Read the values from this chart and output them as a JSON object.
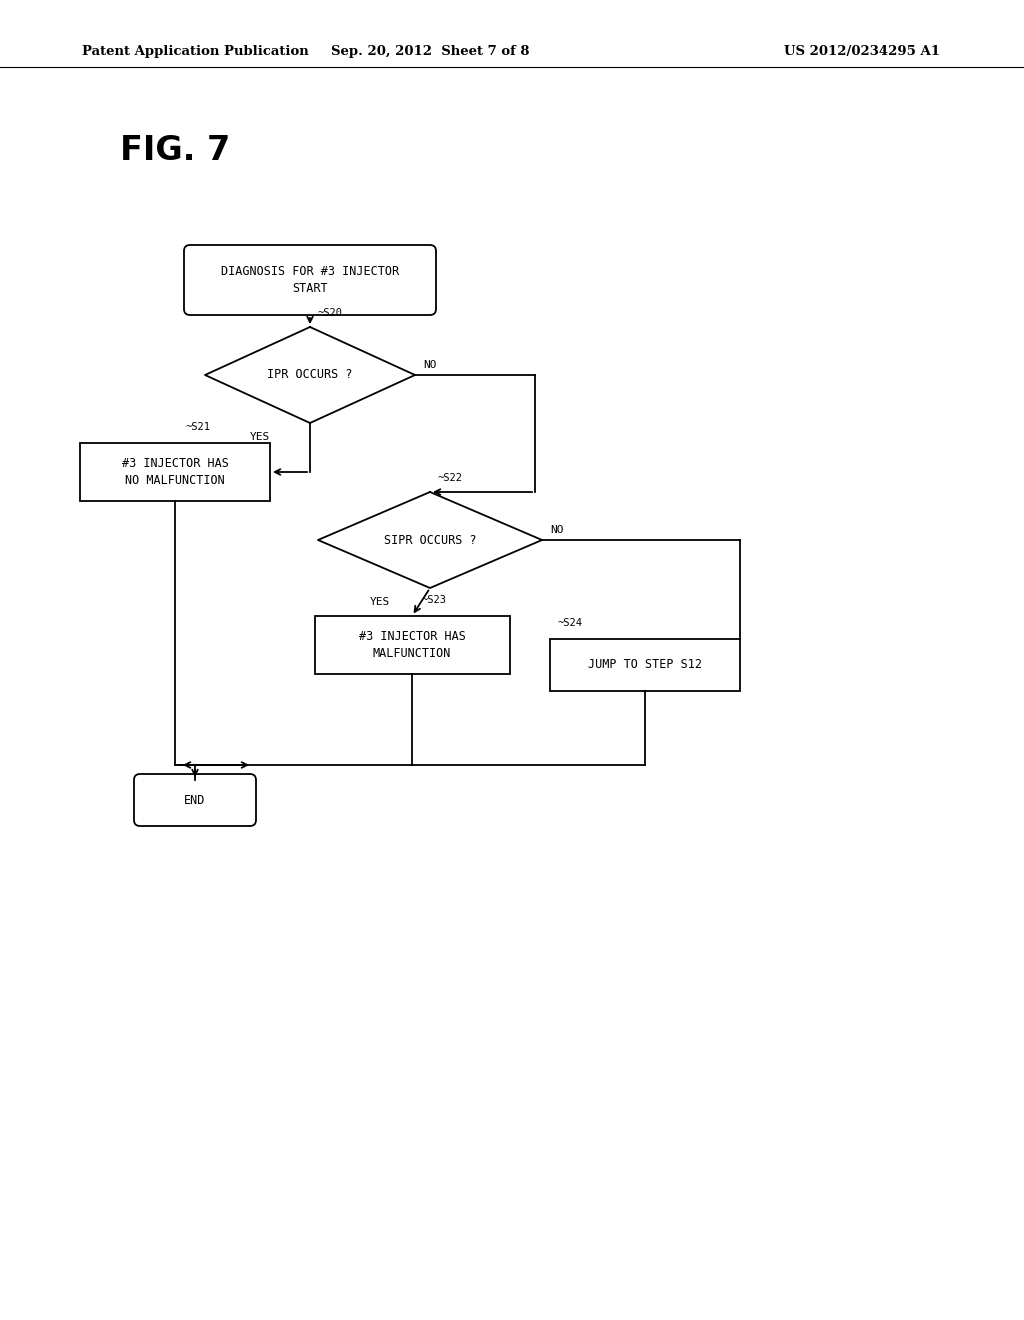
{
  "background_color": "#ffffff",
  "header_left": "Patent Application Publication",
  "header_center": "Sep. 20, 2012  Sheet 7 of 8",
  "header_right": "US 2012/0234295 A1",
  "fig_label": "FIG. 7",
  "start_text": "DIAGNOSIS FOR #3 INJECTOR\nSTART",
  "s20_text": "IPR OCCURS ?",
  "s21_text": "#3 INJECTOR HAS\nNO MALFUNCTION",
  "s22_text": "SIPR OCCURS ?",
  "s23_text": "#3 INJECTOR HAS\nMALFUNCTION",
  "s24_text": "JUMP TO STEP S12",
  "end_text": "END",
  "font_size_header": 9.5,
  "font_size_fig": 24,
  "font_size_node": 8.5,
  "font_size_label": 7.5,
  "font_size_yesno": 8
}
